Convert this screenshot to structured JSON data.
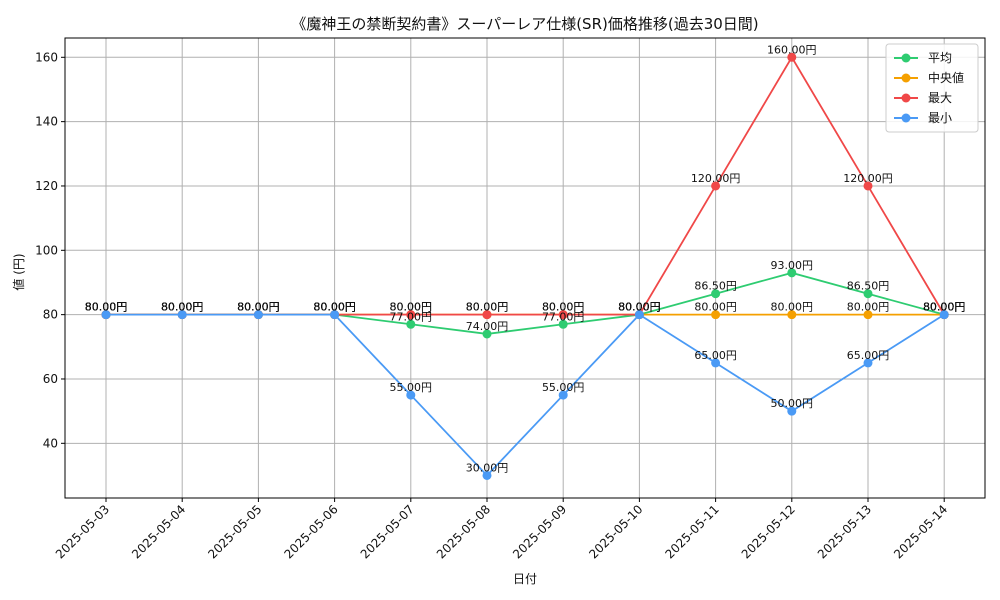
{
  "chart_data": {
    "type": "line",
    "title": "《魔神王の禁断契約書》スーパーレア仕様(SR)価格推移(過去30日間)",
    "xlabel": "日付",
    "ylabel": "値 (円)",
    "categories": [
      "2025-05-03",
      "2025-05-04",
      "2025-05-05",
      "2025-05-06",
      "2025-05-07",
      "2025-05-08",
      "2025-05-09",
      "2025-05-10",
      "2025-05-11",
      "2025-05-12",
      "2025-05-13",
      "2025-05-14"
    ],
    "ylim": [
      23,
      166
    ],
    "yticks": [
      40,
      60,
      80,
      100,
      120,
      140,
      160
    ],
    "grid": true,
    "legend_position": "top-right",
    "series": [
      {
        "name": "平均",
        "color": "#2ecc71",
        "values": [
          80,
          80,
          80,
          80,
          77,
          74,
          77,
          80,
          86.5,
          93,
          86.5,
          80
        ],
        "labels": [
          "80.00円",
          "80.00円",
          "80.00円",
          "80.00円",
          "77.00円",
          "74.00円",
          "77.00円",
          "80.00円",
          "86.50円",
          "93.00円",
          "86.50円",
          "80.00円"
        ]
      },
      {
        "name": "中央値",
        "color": "#f5a000",
        "values": [
          80,
          80,
          80,
          80,
          80,
          80,
          80,
          80,
          80,
          80,
          80,
          80
        ],
        "labels": [
          "80.00円",
          "80.00円",
          "80.00円",
          "80.00円",
          "80.00円",
          "80.00円",
          "80.00円",
          "80.00円",
          "80.00円",
          "80.00円",
          "80.00円",
          "80.00円"
        ]
      },
      {
        "name": "最大",
        "color": "#f04848",
        "values": [
          80,
          80,
          80,
          80,
          80,
          80,
          80,
          80,
          120,
          160,
          120,
          80
        ],
        "labels": [
          "80.00円",
          "80.00円",
          "80.00円",
          "80.00円",
          "80.00円",
          "80.00円",
          "80.00円",
          "80.00円",
          "120.00円",
          "160.00円",
          "120.00円",
          "80.00円"
        ]
      },
      {
        "name": "最小",
        "color": "#4a9af5",
        "values": [
          80,
          80,
          80,
          80,
          55,
          30,
          55,
          80,
          65,
          50,
          65,
          80
        ],
        "labels": [
          "80.00円",
          "80.00円",
          "80.00円",
          "80.00円",
          "55.00円",
          "30.00円",
          "55.00円",
          "80.00円",
          "65.00円",
          "50.00円",
          "65.00円",
          "80.00円"
        ]
      }
    ]
  }
}
